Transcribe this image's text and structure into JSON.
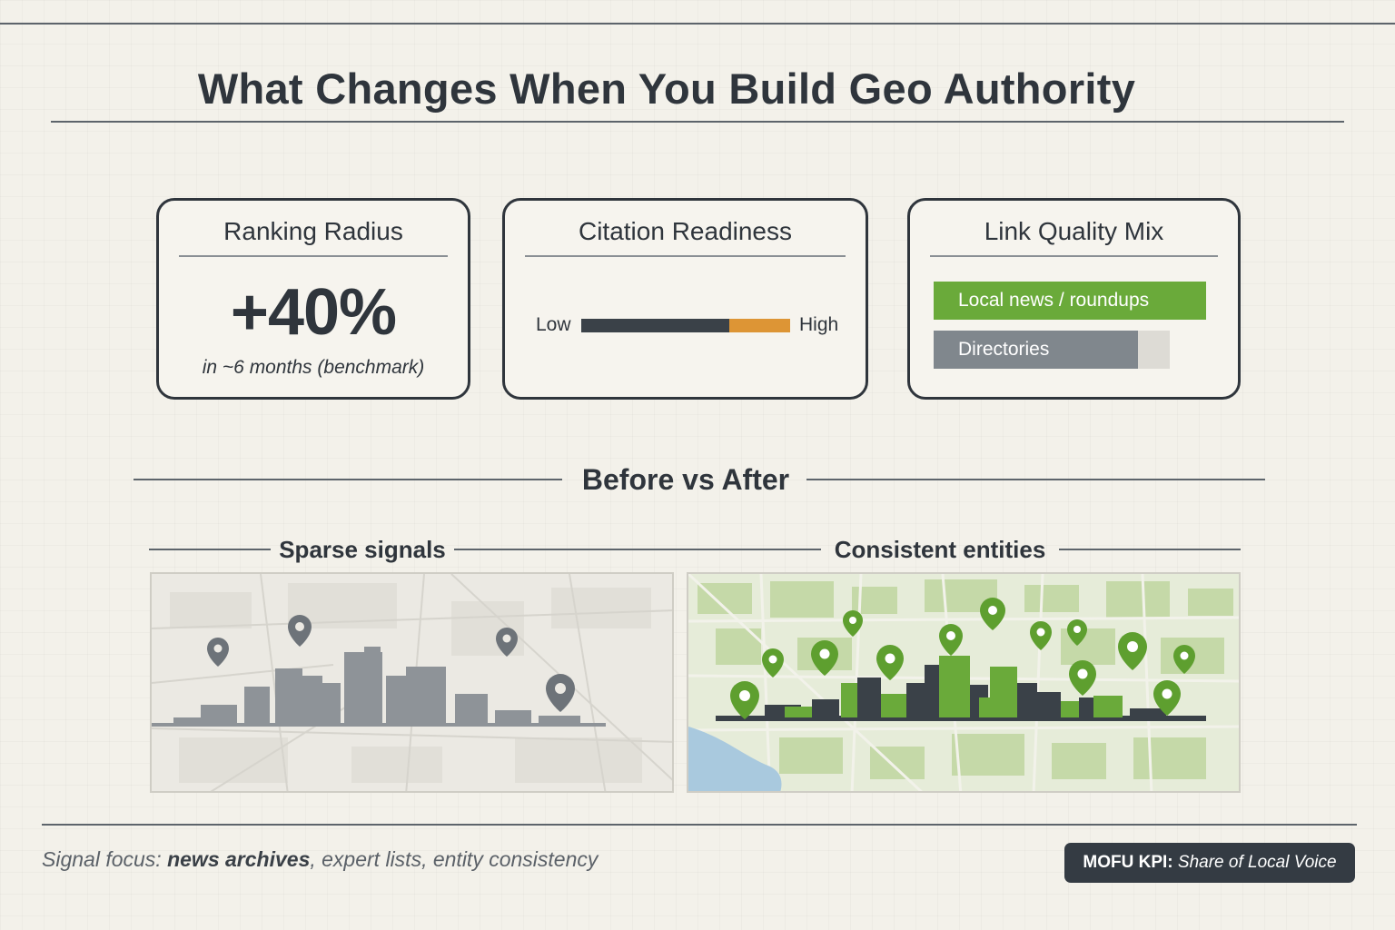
{
  "title": "What Changes When You Build Geo Authority",
  "cards": {
    "ranking": {
      "title": "Ranking Radius",
      "value": "+40%",
      "note": "in ~6 months (benchmark)"
    },
    "citation": {
      "title": "Citation Readiness",
      "low_label": "Low",
      "high_label": "High",
      "level": 0.71
    },
    "links": {
      "title": "Link Quality Mix",
      "items": [
        {
          "label": "Local news / roundups",
          "share": 1.0
        },
        {
          "label": "Directories",
          "share": 0.867
        }
      ]
    }
  },
  "comparison": {
    "heading": "Before vs After",
    "before_label": "Sparse signals",
    "after_label": "Consistent entities"
  },
  "footer": {
    "prefix": "Signal focus: ",
    "emphasis": "news archives",
    "suffix": ", expert lists, entity consistency",
    "kpi_label": "MOFU KPI:",
    "kpi_value": "Share of Local Voice"
  },
  "colors": {
    "ink": "#2f353c",
    "accent_green": "#6aaa3a",
    "accent_orange": "#dd9535",
    "bar_dark": "#3a4148",
    "bar_gray": "#80878d",
    "kpi_bg": "#343b43",
    "background": "#f3f1ea"
  },
  "icons": {
    "map_pin": "map-pin-icon"
  }
}
